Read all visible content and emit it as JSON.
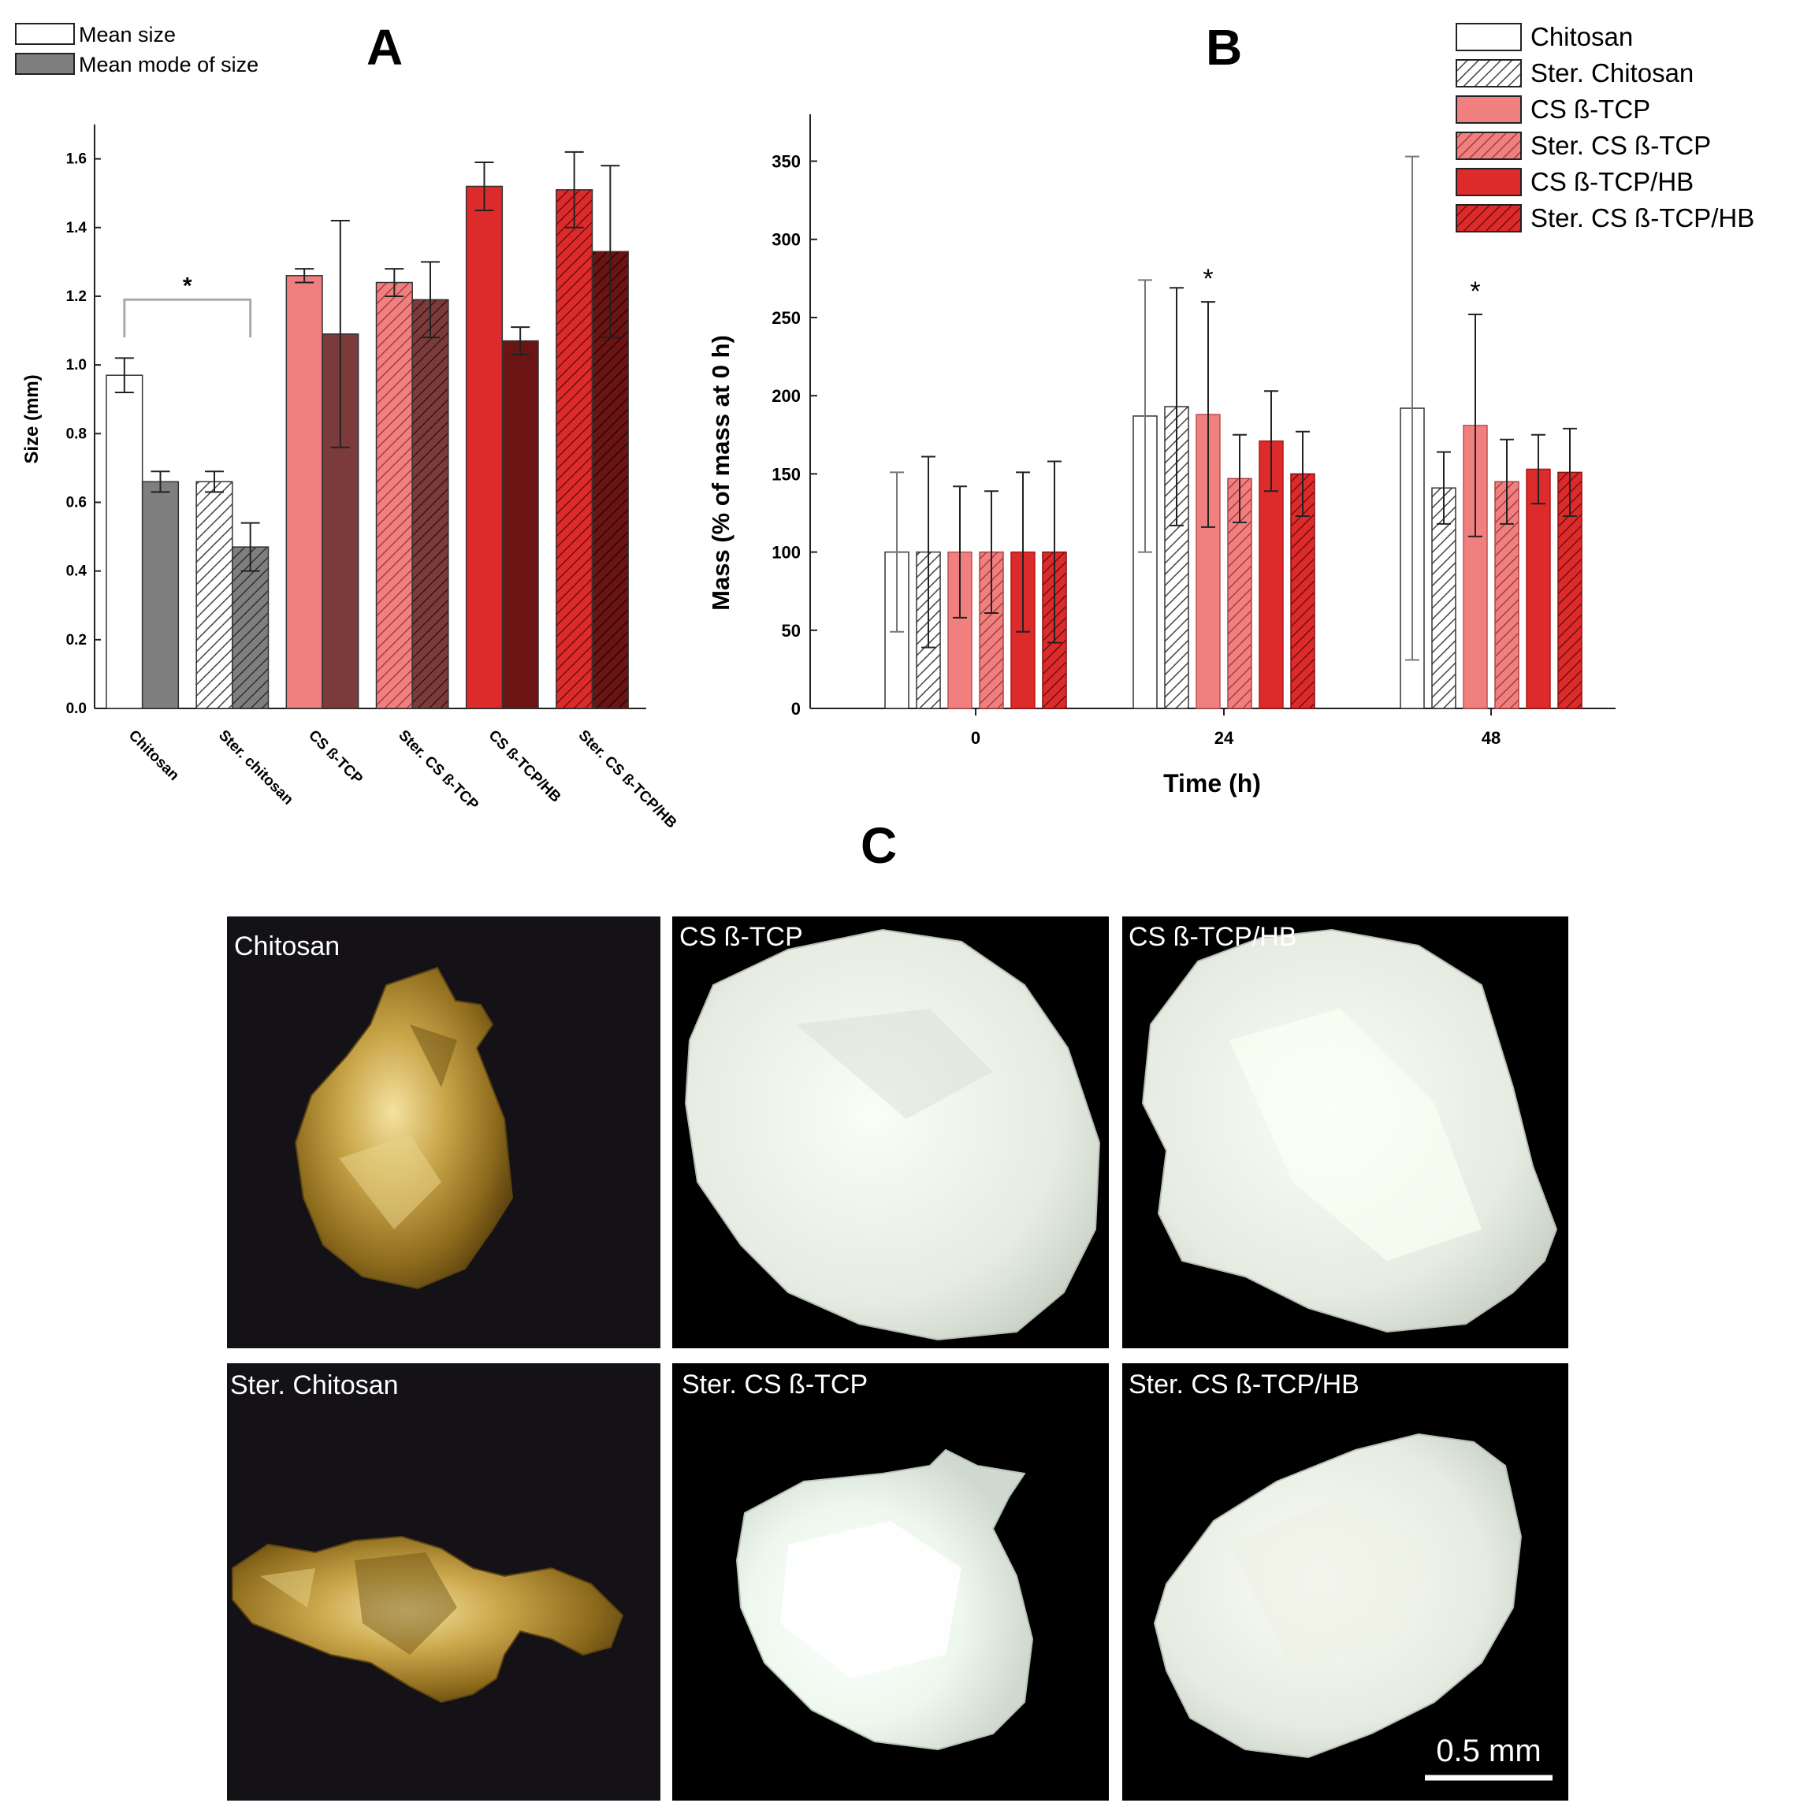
{
  "colors": {
    "chitosan": "#ffffff",
    "chitosan_dark": "#7f7f7f",
    "cs_tcp": "#f08080",
    "cs_tcp_dark": "#7b3b3b",
    "cs_tcp_hb": "#dd2a2a",
    "cs_tcp_hb_dark": "#6b1414",
    "edge": "#222222"
  },
  "panel_letters": {
    "a": "A",
    "b": "B",
    "c": "C"
  },
  "chart_data": [
    {
      "panel": "A",
      "type": "bar",
      "ylabel": "Size (mm)",
      "xlabel": "",
      "ylim": [
        0,
        1.7
      ],
      "yticks": [
        "0.0",
        "0.2",
        "0.4",
        "0.6",
        "0.8",
        "1.0",
        "1.2",
        "1.4",
        "1.6"
      ],
      "categories": [
        "Chitosan",
        "Ster. chitosan",
        "CS ß-TCP",
        "Ster. CS ß-TCP",
        "CS ß-TCP/HB",
        "Ster. CS ß-TCP/HB"
      ],
      "hatched": [
        false,
        true,
        false,
        true,
        false,
        true
      ],
      "series": [
        {
          "name": "Mean size",
          "values": [
            0.97,
            0.66,
            1.26,
            1.24,
            1.52,
            1.51
          ],
          "errors": [
            0.05,
            0.03,
            0.02,
            0.04,
            0.07,
            0.11
          ]
        },
        {
          "name": "Mean mode of size",
          "values": [
            0.66,
            0.47,
            1.09,
            1.19,
            1.07,
            1.33
          ],
          "errors": [
            0.03,
            0.07,
            0.33,
            0.11,
            0.04,
            0.25
          ]
        }
      ],
      "significance": {
        "between": [
          "Chitosan",
          "Ster. chitosan"
        ],
        "label": "*"
      },
      "legend_position": "top-left"
    },
    {
      "panel": "B",
      "type": "bar",
      "xlabel": "Time (h)",
      "ylabel": "Mass (% of mass at 0 h)",
      "ylim": [
        0,
        380
      ],
      "yticks": [
        "0",
        "50",
        "100",
        "150",
        "200",
        "250",
        "300",
        "350"
      ],
      "categories": [
        "0",
        "24",
        "48"
      ],
      "series": [
        {
          "name": "Chitosan",
          "values": [
            100,
            187,
            192
          ],
          "errors": [
            51,
            87,
            161
          ],
          "hatched": false
        },
        {
          "name": "Ster. Chitosan",
          "values": [
            100,
            193,
            141
          ],
          "errors": [
            61,
            76,
            23
          ],
          "hatched": true
        },
        {
          "name": "CS ß-TCP",
          "values": [
            100,
            188,
            181
          ],
          "errors": [
            42,
            72,
            71
          ],
          "hatched": false
        },
        {
          "name": "Ster. CS ß-TCP",
          "values": [
            100,
            147,
            145
          ],
          "errors": [
            39,
            28,
            27
          ],
          "hatched": true
        },
        {
          "name": "CS ß-TCP/HB",
          "values": [
            100,
            171,
            153
          ],
          "errors": [
            51,
            32,
            22
          ],
          "hatched": false
        },
        {
          "name": "Ster. CS ß-TCP/HB",
          "values": [
            100,
            150,
            151
          ],
          "errors": [
            58,
            27,
            28
          ],
          "hatched": true
        }
      ],
      "significance": [
        {
          "category": "24",
          "label": "*"
        },
        {
          "category": "48",
          "label": "*"
        }
      ],
      "legend_position": "top-right"
    }
  ],
  "photos": {
    "scale_bar_label": "0.5 mm",
    "panels": [
      {
        "label": "Chitosan",
        "material": "gold"
      },
      {
        "label": "CS ß-TCP",
        "material": "white"
      },
      {
        "label": "CS ß-TCP/HB",
        "material": "white"
      },
      {
        "label": "Ster. Chitosan",
        "material": "gold"
      },
      {
        "label": "Ster. CS ß-TCP",
        "material": "white"
      },
      {
        "label": "Ster. CS ß-TCP/HB",
        "material": "white"
      }
    ]
  }
}
